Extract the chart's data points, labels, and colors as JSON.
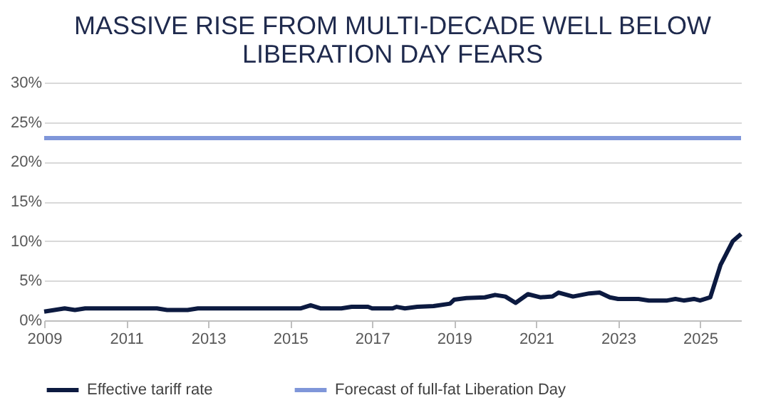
{
  "chart_data": {
    "type": "line",
    "title": [
      "MASSIVE RISE FROM MULTI-DECADE WELL BELOW",
      "LIBERATION DAY FEARS"
    ],
    "xlim": [
      2009,
      2026
    ],
    "xticks": [
      2009,
      2011,
      2013,
      2015,
      2017,
      2019,
      2021,
      2023,
      2025
    ],
    "ylim": [
      0,
      30
    ],
    "yticks": [
      {
        "value": 0,
        "label": "0%"
      },
      {
        "value": 5,
        "label": "5%"
      },
      {
        "value": 10,
        "label": "10%"
      },
      {
        "value": 15,
        "label": "15%"
      },
      {
        "value": 20,
        "label": "20%"
      },
      {
        "value": 25,
        "label": "25%"
      },
      {
        "value": 30,
        "label": "30%"
      }
    ],
    "grid": "y",
    "legend": "bottom",
    "marker": "none",
    "line_style": "solid",
    "series": [
      {
        "name": "Effective tariff rate",
        "color": "#0c1a40",
        "x": [
          2009.0,
          2009.5,
          2009.75,
          2010.0,
          2011.75,
          2012.0,
          2012.5,
          2012.75,
          2015.25,
          2015.5,
          2015.75,
          2016.25,
          2016.5,
          2016.9,
          2017.0,
          2017.5,
          2017.6,
          2017.8,
          2018.1,
          2018.5,
          2018.9,
          2019.0,
          2019.3,
          2019.75,
          2020.0,
          2020.25,
          2020.5,
          2020.8,
          2021.1,
          2021.4,
          2021.55,
          2021.9,
          2022.3,
          2022.55,
          2022.8,
          2023.0,
          2023.5,
          2023.75,
          2024.2,
          2024.4,
          2024.6,
          2024.85,
          2025.0,
          2025.25,
          2025.5,
          2025.8,
          2026.0
        ],
        "values": [
          1.1,
          1.5,
          1.3,
          1.5,
          1.5,
          1.3,
          1.3,
          1.5,
          1.5,
          1.9,
          1.5,
          1.5,
          1.7,
          1.7,
          1.5,
          1.5,
          1.7,
          1.5,
          1.7,
          1.8,
          2.1,
          2.6,
          2.8,
          2.9,
          3.2,
          3.0,
          2.2,
          3.3,
          2.9,
          3.0,
          3.5,
          3.0,
          3.4,
          3.5,
          2.9,
          2.7,
          2.7,
          2.5,
          2.5,
          2.7,
          2.5,
          2.7,
          2.5,
          2.9,
          7.0,
          10.0,
          10.9
        ]
      },
      {
        "name": "Forecast of full-fat Liberation Day",
        "color": "#7f96d9",
        "x": [
          2009,
          2026
        ],
        "values": [
          23,
          23
        ]
      }
    ]
  }
}
